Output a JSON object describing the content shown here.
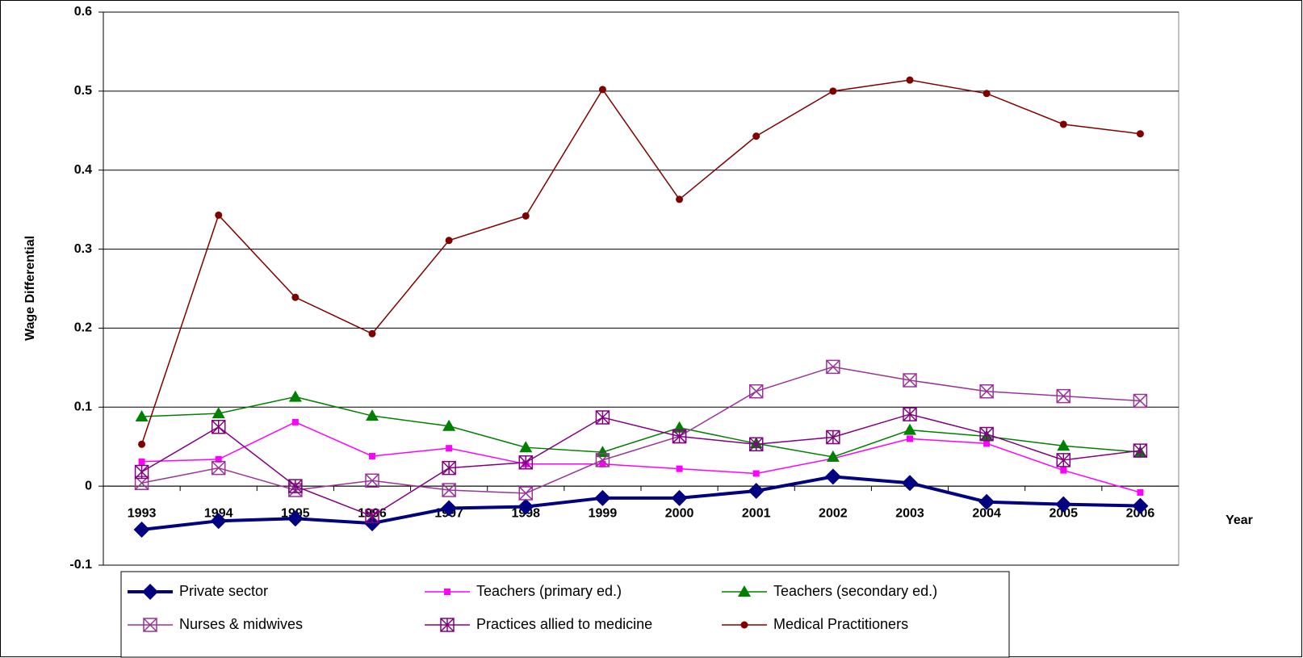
{
  "chart_data": {
    "type": "line",
    "y_label": "Wage Differential",
    "x_label": "Year",
    "categories": [
      "1993",
      "1994",
      "1995",
      "1996",
      "1997",
      "1998",
      "1999",
      "2000",
      "2001",
      "2002",
      "2003",
      "2004",
      "2005",
      "2006"
    ],
    "ylim": [
      -0.1,
      0.6
    ],
    "yticks": [
      -0.1,
      0,
      0.1,
      0.2,
      0.3,
      0.4,
      0.5,
      0.6
    ],
    "grid": true,
    "series": [
      {
        "name": "Private sector",
        "color": "#000080",
        "marker": "diamond",
        "values": [
          -0.055,
          -0.044,
          -0.041,
          -0.047,
          -0.028,
          -0.026,
          -0.015,
          -0.015,
          -0.006,
          0.012,
          0.004,
          -0.02,
          -0.023,
          -0.025
        ]
      },
      {
        "name": "Teachers (primary ed.)",
        "color": "#ff00ff",
        "marker": "square",
        "values": [
          0.031,
          0.034,
          0.081,
          0.038,
          0.048,
          0.028,
          0.028,
          0.022,
          0.016,
          0.035,
          0.06,
          0.054,
          0.02,
          -0.008
        ]
      },
      {
        "name": "Teachers (secondary ed.)",
        "color": "#008000",
        "marker": "triangle",
        "values": [
          0.088,
          0.092,
          0.113,
          0.089,
          0.076,
          0.049,
          0.043,
          0.074,
          0.054,
          0.037,
          0.071,
          0.063,
          0.051,
          0.043
        ]
      },
      {
        "name": "Nurses & midwives",
        "color": "#993399",
        "marker": "box-x",
        "values": [
          0.004,
          0.023,
          -0.005,
          0.007,
          -0.005,
          -0.009,
          0.033,
          0.063,
          0.12,
          0.151,
          0.134,
          0.12,
          0.114,
          0.108
        ]
      },
      {
        "name": "Practices allied to medicine",
        "color": "#800080",
        "marker": "box-star",
        "values": [
          0.018,
          0.075,
          0.0,
          -0.038,
          0.023,
          0.03,
          0.087,
          0.063,
          0.053,
          0.062,
          0.091,
          0.066,
          0.033,
          0.045
        ]
      },
      {
        "name": "Medical Practitioners",
        "color": "#800000",
        "marker": "circle",
        "values": [
          0.053,
          0.343,
          0.239,
          0.193,
          0.311,
          0.342,
          0.502,
          0.363,
          0.443,
          0.5,
          0.514,
          0.497,
          0.458,
          0.446
        ]
      }
    ]
  }
}
